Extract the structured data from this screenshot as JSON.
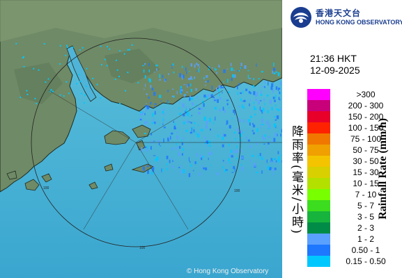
{
  "logo": {
    "chinese": "香港天文台",
    "english": "HONG KONG OBSERVATORY",
    "emblem_icon": "hko-emblem-icon"
  },
  "timestamp": {
    "time": "21:36 HKT",
    "date": "12-09-2025"
  },
  "legend": {
    "title_chinese": "降雨率(毫米/小時)",
    "title_english": "Rainfall Rate (mm/h)",
    "items": [
      {
        "label": ">300",
        "color": "#ff00ff"
      },
      {
        "label": "200 - 300",
        "color": "#c8007a"
      },
      {
        "label": "150 - 200",
        "color": "#e8002a"
      },
      {
        "label": "100 - 150",
        "color": "#ff2200"
      },
      {
        "label": "75 - 100",
        "color": "#f07800"
      },
      {
        "label": "50 - 75",
        "color": "#f0a000"
      },
      {
        "label": "30 - 50",
        "color": "#f4c400"
      },
      {
        "label": "15 - 30",
        "color": "#d8d000"
      },
      {
        "label": "10 - 15",
        "color": "#b4e000"
      },
      {
        "label": "7 - 10",
        "color": "#78ff00"
      },
      {
        "label": "5 - 7",
        "color": "#3cdc1e"
      },
      {
        "label": "3 - 5",
        "color": "#16b43c"
      },
      {
        "label": "2 - 3",
        "color": "#008c46"
      },
      {
        "label": "1 - 2",
        "color": "#5aa0ff"
      },
      {
        "label": "0.50 - 1",
        "color": "#1e78ff"
      },
      {
        "label": "0.15 - 0.50",
        "color": "#00c8ff"
      }
    ]
  },
  "map": {
    "range_rings": [
      "100",
      "100",
      "100"
    ],
    "copyright": "© Hong Kong Observatory"
  }
}
